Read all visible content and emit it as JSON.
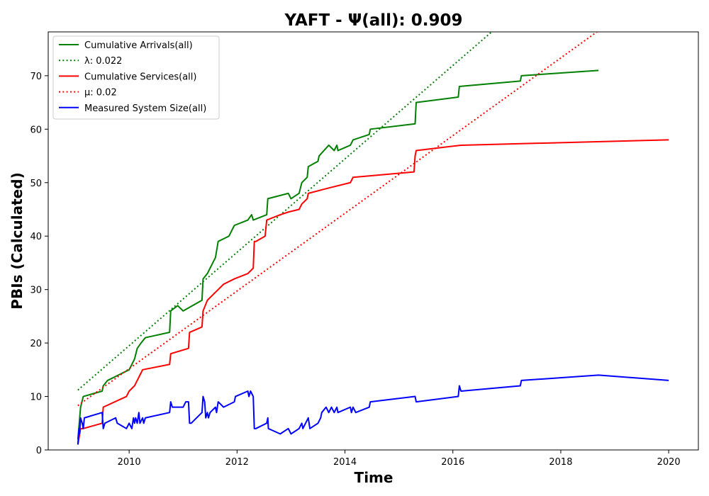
{
  "chart_data": {
    "type": "line",
    "title": "YAFT -  Ψ(all): 0.909",
    "xlabel": "Time",
    "ylabel": "PBIs (Calculated)",
    "xlim": [
      2008.5,
      2020.55
    ],
    "ylim": [
      0,
      78.2
    ],
    "x_ticks": [
      2010,
      2012,
      2014,
      2016,
      2018,
      2020
    ],
    "y_ticks": [
      0,
      10,
      20,
      30,
      40,
      50,
      60,
      70
    ],
    "grid": false,
    "legend_position": "top-left",
    "series": [
      {
        "name": "Cumulative Arrivals(all)",
        "color": "#008000",
        "style": "solid",
        "points": [
          [
            2009.05,
            2
          ],
          [
            2009.1,
            8
          ],
          [
            2009.15,
            10
          ],
          [
            2009.5,
            11
          ],
          [
            2009.52,
            12
          ],
          [
            2009.6,
            13
          ],
          [
            2009.8,
            14
          ],
          [
            2010.0,
            15
          ],
          [
            2010.05,
            16
          ],
          [
            2010.1,
            17
          ],
          [
            2010.15,
            19
          ],
          [
            2010.22,
            20
          ],
          [
            2010.3,
            21
          ],
          [
            2010.75,
            22
          ],
          [
            2010.77,
            26
          ],
          [
            2010.9,
            27
          ],
          [
            2011.0,
            26
          ],
          [
            2011.35,
            28
          ],
          [
            2011.37,
            32
          ],
          [
            2011.45,
            33
          ],
          [
            2011.5,
            34
          ],
          [
            2011.6,
            36
          ],
          [
            2011.65,
            39
          ],
          [
            2011.85,
            40
          ],
          [
            2011.95,
            42
          ],
          [
            2012.2,
            43
          ],
          [
            2012.27,
            44
          ],
          [
            2012.3,
            43
          ],
          [
            2012.55,
            44
          ],
          [
            2012.57,
            47
          ],
          [
            2012.95,
            48
          ],
          [
            2013.0,
            47
          ],
          [
            2013.15,
            48
          ],
          [
            2013.2,
            50
          ],
          [
            2013.3,
            51
          ],
          [
            2013.32,
            53
          ],
          [
            2013.5,
            54
          ],
          [
            2013.52,
            55
          ],
          [
            2013.7,
            57
          ],
          [
            2013.8,
            56
          ],
          [
            2013.85,
            57
          ],
          [
            2013.87,
            56
          ],
          [
            2014.1,
            57
          ],
          [
            2014.15,
            58
          ],
          [
            2014.45,
            59
          ],
          [
            2014.47,
            60
          ],
          [
            2015.3,
            61
          ],
          [
            2015.32,
            65
          ],
          [
            2016.1,
            66
          ],
          [
            2016.12,
            68
          ],
          [
            2017.25,
            69
          ],
          [
            2017.27,
            70
          ],
          [
            2018.7,
            71
          ]
        ]
      },
      {
        "name": "λ: 0.022",
        "color": "#008000",
        "style": "dotted",
        "points": [
          [
            2009.05,
            11.2
          ],
          [
            2016.72,
            78.2
          ]
        ]
      },
      {
        "name": "Cumulative Services(all)",
        "color": "#ff0000",
        "style": "solid",
        "points": [
          [
            2009.05,
            1
          ],
          [
            2009.1,
            4
          ],
          [
            2009.15,
            4
          ],
          [
            2009.5,
            5
          ],
          [
            2009.52,
            8
          ],
          [
            2009.95,
            10
          ],
          [
            2010.0,
            11
          ],
          [
            2010.1,
            12
          ],
          [
            2010.15,
            13
          ],
          [
            2010.2,
            14
          ],
          [
            2010.25,
            15
          ],
          [
            2010.75,
            16
          ],
          [
            2010.77,
            18
          ],
          [
            2011.1,
            19
          ],
          [
            2011.12,
            22
          ],
          [
            2011.35,
            23
          ],
          [
            2011.37,
            26
          ],
          [
            2011.45,
            28
          ],
          [
            2011.55,
            29
          ],
          [
            2011.65,
            30
          ],
          [
            2011.75,
            31
          ],
          [
            2011.95,
            32
          ],
          [
            2012.2,
            33
          ],
          [
            2012.3,
            34
          ],
          [
            2012.32,
            39
          ],
          [
            2012.35,
            39
          ],
          [
            2012.52,
            40
          ],
          [
            2012.55,
            43
          ],
          [
            2012.8,
            44
          ],
          [
            2012.95,
            44.5
          ],
          [
            2013.15,
            45
          ],
          [
            2013.2,
            46
          ],
          [
            2013.3,
            47
          ],
          [
            2013.32,
            48
          ],
          [
            2013.7,
            49
          ],
          [
            2014.1,
            50
          ],
          [
            2014.15,
            51
          ],
          [
            2015.28,
            52
          ],
          [
            2015.3,
            55
          ],
          [
            2015.32,
            56
          ],
          [
            2016.15,
            57
          ],
          [
            2020.0,
            58
          ]
        ]
      },
      {
        "name": "μ: 0.02",
        "color": "#ff0000",
        "style": "dotted",
        "points": [
          [
            2009.05,
            8.3
          ],
          [
            2018.67,
            78.2
          ]
        ]
      },
      {
        "name": "Measured System Size(all)",
        "color": "#0000ff",
        "style": "solid",
        "points": [
          [
            2009.05,
            1
          ],
          [
            2009.07,
            4
          ],
          [
            2009.08,
            3
          ],
          [
            2009.1,
            6
          ],
          [
            2009.13,
            5
          ],
          [
            2009.15,
            4
          ],
          [
            2009.17,
            6
          ],
          [
            2009.5,
            7
          ],
          [
            2009.52,
            4
          ],
          [
            2009.55,
            5
          ],
          [
            2009.75,
            6
          ],
          [
            2009.78,
            5
          ],
          [
            2009.95,
            4
          ],
          [
            2010.0,
            5
          ],
          [
            2010.05,
            4
          ],
          [
            2010.08,
            6
          ],
          [
            2010.1,
            5
          ],
          [
            2010.12,
            6
          ],
          [
            2010.15,
            5
          ],
          [
            2010.18,
            7
          ],
          [
            2010.2,
            5
          ],
          [
            2010.25,
            6
          ],
          [
            2010.27,
            5
          ],
          [
            2010.3,
            6
          ],
          [
            2010.75,
            7
          ],
          [
            2010.77,
            9
          ],
          [
            2010.8,
            8
          ],
          [
            2011.0,
            8
          ],
          [
            2011.05,
            9
          ],
          [
            2011.1,
            9
          ],
          [
            2011.12,
            5
          ],
          [
            2011.15,
            5
          ],
          [
            2011.35,
            7
          ],
          [
            2011.37,
            10
          ],
          [
            2011.4,
            9
          ],
          [
            2011.42,
            6
          ],
          [
            2011.45,
            7
          ],
          [
            2011.47,
            6
          ],
          [
            2011.5,
            7
          ],
          [
            2011.6,
            8
          ],
          [
            2011.62,
            7
          ],
          [
            2011.65,
            9
          ],
          [
            2011.75,
            8
          ],
          [
            2011.95,
            9
          ],
          [
            2011.97,
            10
          ],
          [
            2012.2,
            11
          ],
          [
            2012.22,
            10
          ],
          [
            2012.25,
            11
          ],
          [
            2012.3,
            10
          ],
          [
            2012.32,
            4
          ],
          [
            2012.35,
            4
          ],
          [
            2012.55,
            5
          ],
          [
            2012.57,
            6
          ],
          [
            2012.58,
            4
          ],
          [
            2012.8,
            3
          ],
          [
            2012.95,
            4
          ],
          [
            2013.0,
            3
          ],
          [
            2013.15,
            4
          ],
          [
            2013.2,
            5
          ],
          [
            2013.22,
            4
          ],
          [
            2013.32,
            6
          ],
          [
            2013.35,
            4
          ],
          [
            2013.5,
            5
          ],
          [
            2013.55,
            6
          ],
          [
            2013.57,
            7
          ],
          [
            2013.65,
            8
          ],
          [
            2013.7,
            7
          ],
          [
            2013.75,
            8
          ],
          [
            2013.8,
            7
          ],
          [
            2013.85,
            8
          ],
          [
            2013.87,
            7
          ],
          [
            2014.1,
            8
          ],
          [
            2014.12,
            7
          ],
          [
            2014.15,
            8
          ],
          [
            2014.2,
            7
          ],
          [
            2014.45,
            8
          ],
          [
            2014.47,
            9
          ],
          [
            2015.3,
            10
          ],
          [
            2015.32,
            9
          ],
          [
            2016.1,
            10
          ],
          [
            2016.12,
            12
          ],
          [
            2016.15,
            11
          ],
          [
            2017.25,
            12
          ],
          [
            2017.27,
            13
          ],
          [
            2018.7,
            14
          ],
          [
            2020.0,
            13
          ]
        ]
      }
    ]
  }
}
